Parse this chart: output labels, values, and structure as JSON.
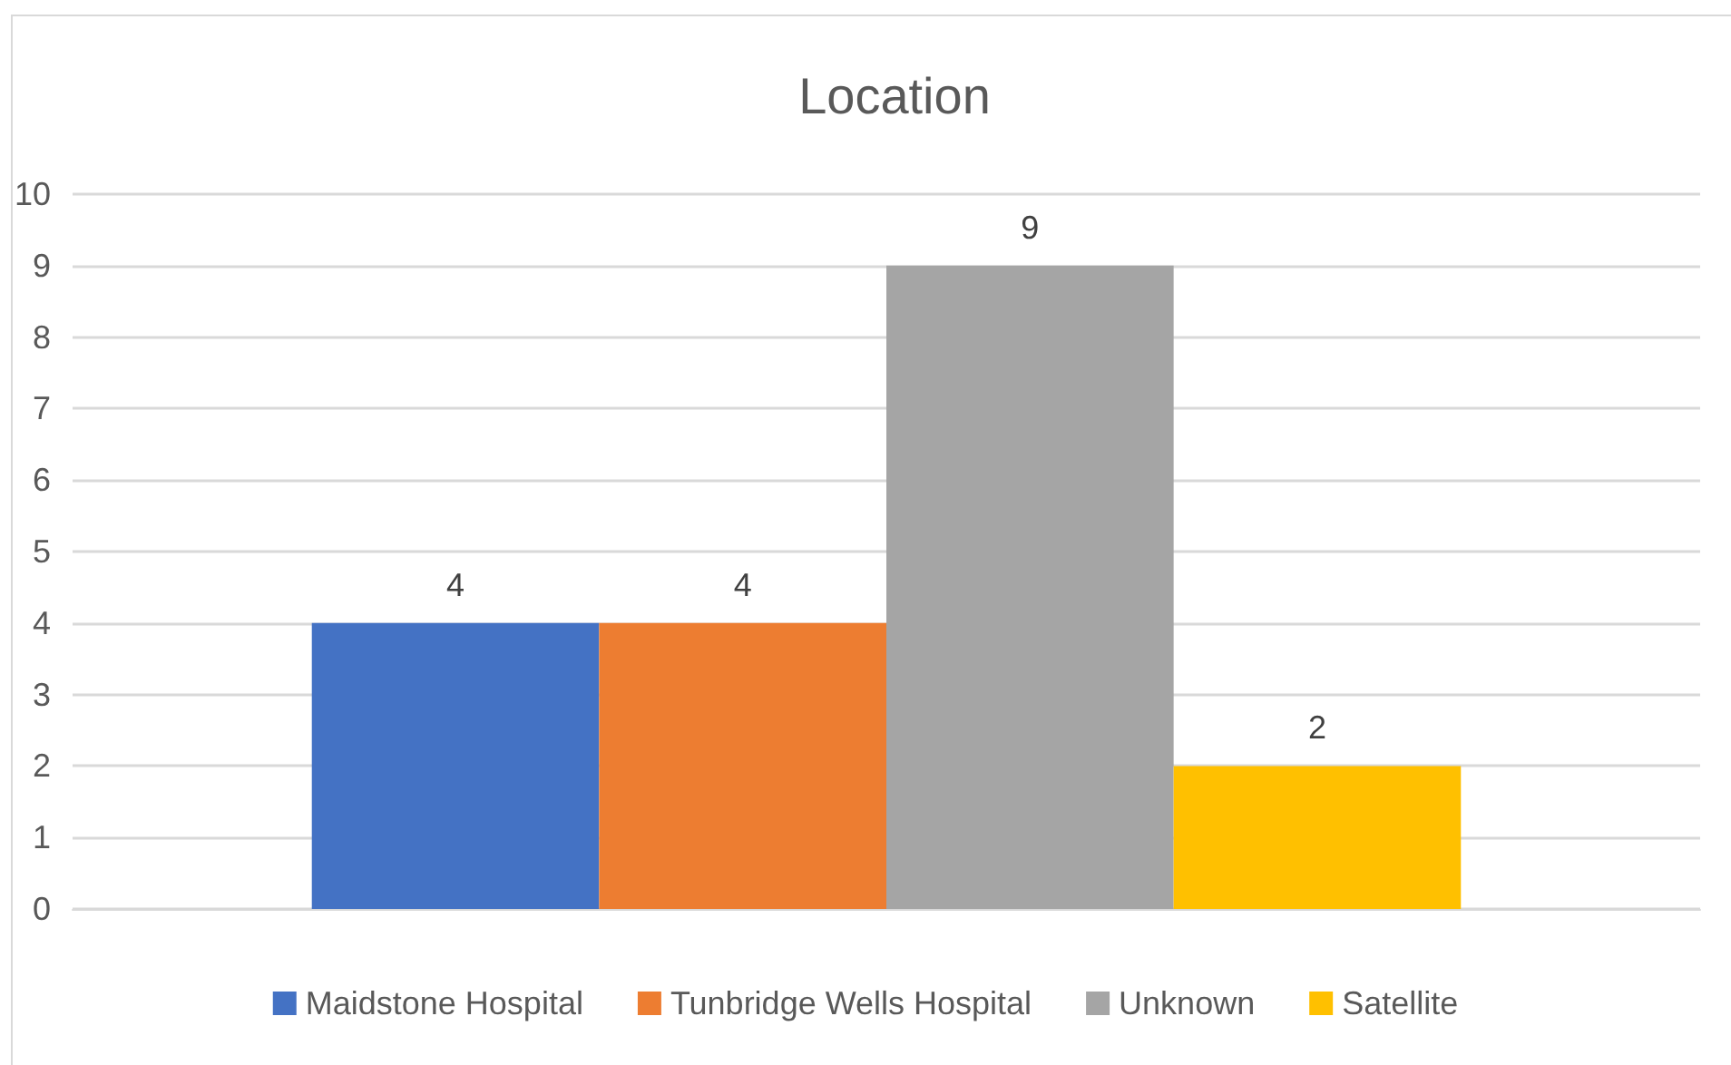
{
  "chart_data": {
    "type": "bar",
    "title": "Location",
    "categories": [
      null
    ],
    "series": [
      {
        "name": "Maidstone Hospital",
        "color": "#4472c4",
        "values": [
          4
        ]
      },
      {
        "name": "Tunbridge Wells Hospital",
        "color": "#ed7d31",
        "values": [
          4
        ]
      },
      {
        "name": "Unknown",
        "color": "#a5a5a5",
        "values": [
          9
        ]
      },
      {
        "name": "Satellite",
        "color": "#ffc000",
        "values": [
          2
        ]
      }
    ],
    "ylim": [
      0,
      10
    ],
    "yticks": [
      0,
      1,
      2,
      3,
      4,
      5,
      6,
      7,
      8,
      9,
      10
    ],
    "grid": "y",
    "legend": "bottom",
    "data_labels": true
  }
}
